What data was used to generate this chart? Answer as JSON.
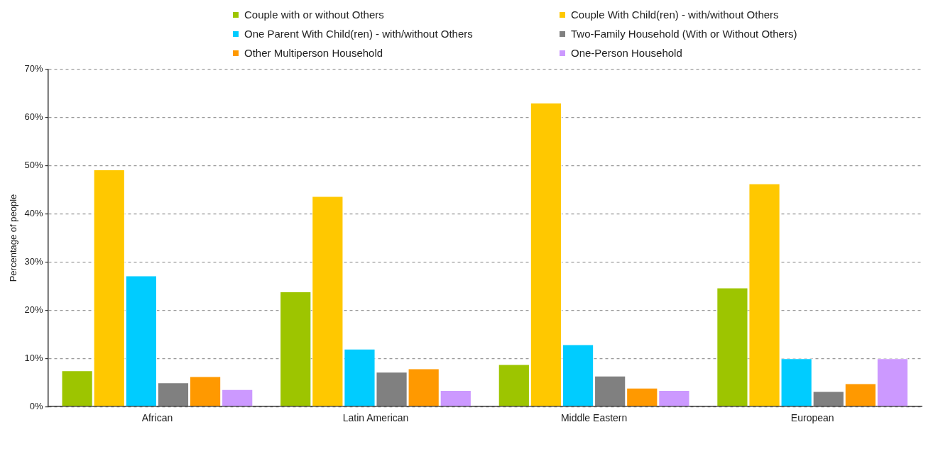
{
  "chart_data": {
    "type": "bar",
    "ylabel": "Percentage of people",
    "categories": [
      "African",
      "Latin American",
      "Middle Eastern",
      "European"
    ],
    "series": [
      {
        "name": "Couple with or without Others",
        "color": "#9dc500",
        "values": [
          7.5,
          23.9,
          8.8,
          24.7
        ]
      },
      {
        "name": "Couple With Child(ren) - with/without Others",
        "color": "#ffc800",
        "values": [
          49.2,
          43.7,
          63.1,
          46.3
        ]
      },
      {
        "name": "One Parent With Child(ren) - with/without Others",
        "color": "#00ccff",
        "values": [
          27.2,
          12.0,
          12.9,
          10.0
        ]
      },
      {
        "name": "Two-Family Household (With or Without Others)",
        "color": "#808080",
        "values": [
          5.0,
          7.2,
          6.4,
          3.2
        ]
      },
      {
        "name": "Other Multiperson Household",
        "color": "#ff9900",
        "values": [
          6.3,
          7.9,
          3.9,
          4.8
        ]
      },
      {
        "name": "One-Person Household",
        "color": "#cc99ff",
        "values": [
          3.6,
          3.4,
          3.4,
          10.0
        ]
      }
    ],
    "ylim": [
      0,
      70
    ],
    "yticks": [
      {
        "value": 0,
        "label": "0%"
      },
      {
        "value": 10,
        "label": "10%"
      },
      {
        "value": 20,
        "label": "20%"
      },
      {
        "value": 30,
        "label": "30%"
      },
      {
        "value": 40,
        "label": "40%"
      },
      {
        "value": 50,
        "label": "50%"
      },
      {
        "value": 60,
        "label": "60%"
      },
      {
        "value": 70,
        "label": "70%"
      }
    ],
    "grid": "y",
    "legend": "top"
  }
}
